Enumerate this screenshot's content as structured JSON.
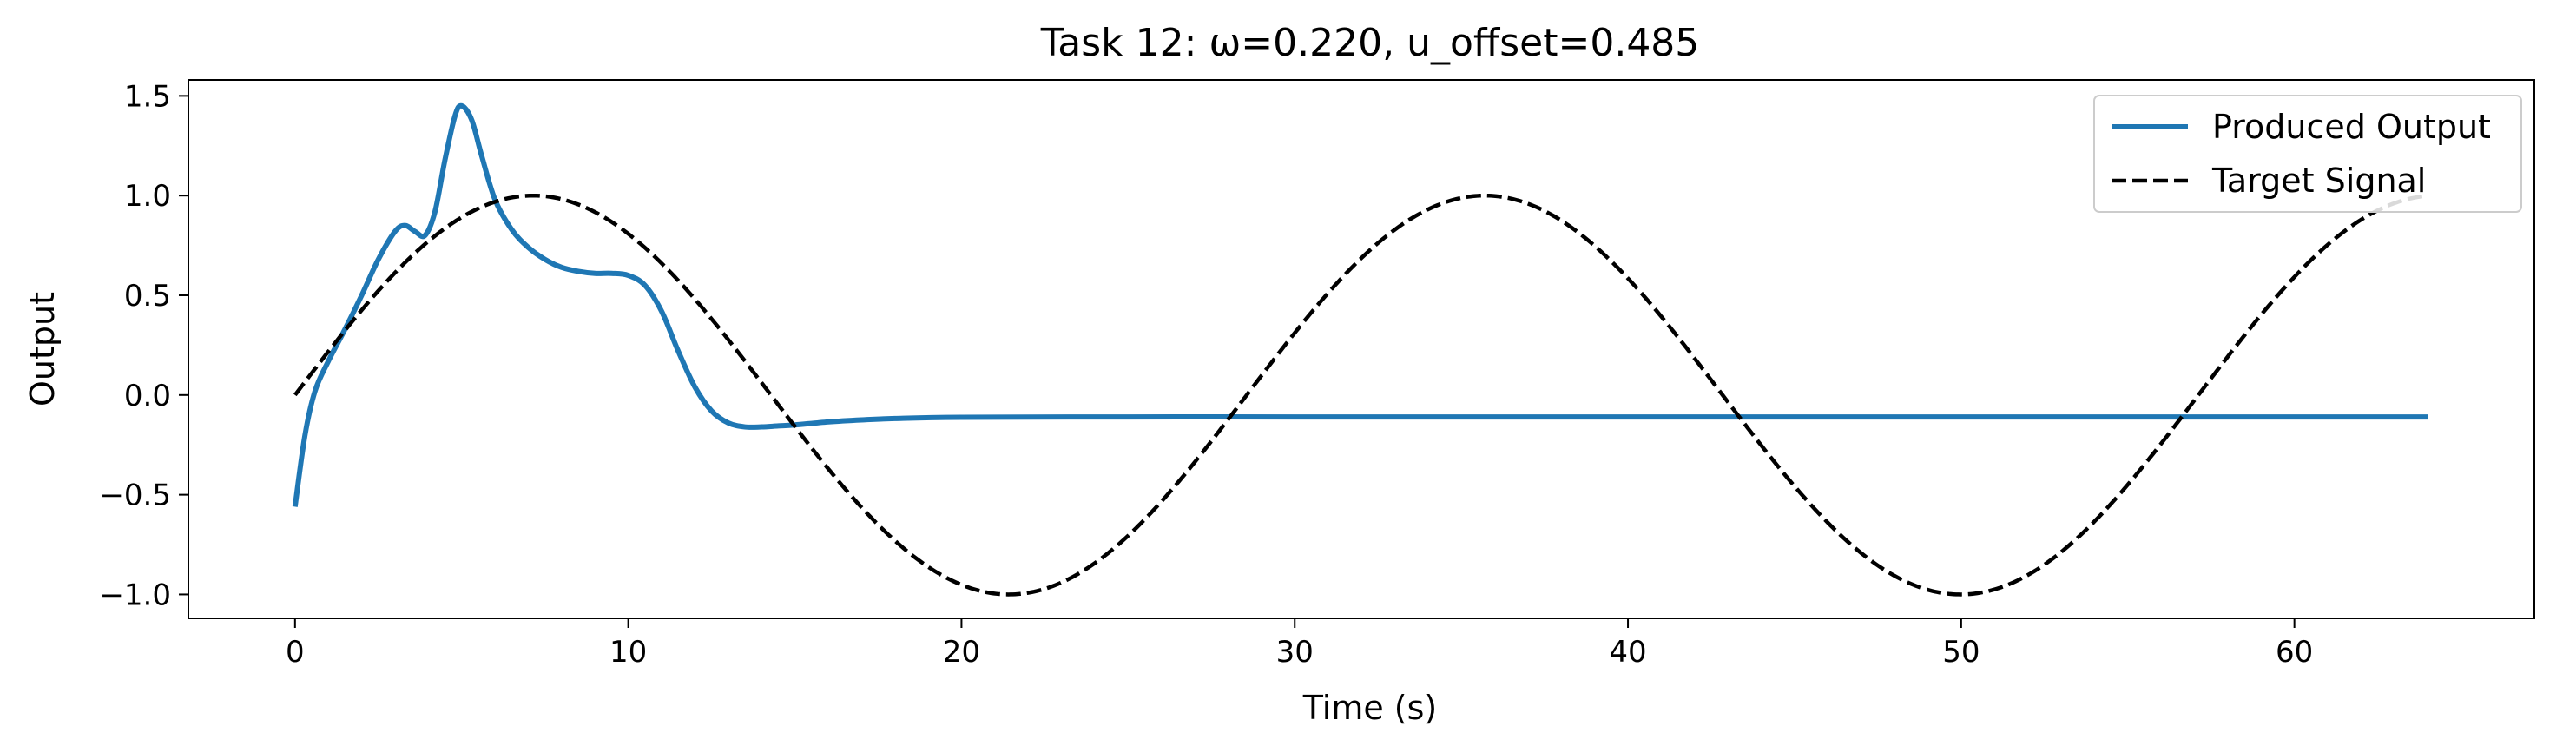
{
  "chart_data": {
    "type": "line",
    "title": "Task 12: ω=0.220, u_offset=0.485",
    "xlabel": "Time (s)",
    "ylabel": "Output",
    "xlim": [
      -3.2,
      67.2
    ],
    "ylim": [
      -1.12,
      1.58
    ],
    "xticks": [
      0,
      10,
      20,
      30,
      40,
      50,
      60
    ],
    "xtick_labels": [
      "0",
      "10",
      "20",
      "30",
      "40",
      "50",
      "60"
    ],
    "yticks": [
      -1.0,
      -0.5,
      0.0,
      0.5,
      1.0,
      1.5
    ],
    "ytick_labels": [
      "−1.0",
      "−0.5",
      "0.0",
      "0.5",
      "1.0",
      "1.5"
    ],
    "grid": false,
    "legend_position": "top-right",
    "series": [
      {
        "name": "Produced Output",
        "color": "#1f77b4",
        "style": "solid",
        "x": [
          0,
          0.3,
          0.6,
          1.0,
          1.5,
          2.0,
          2.5,
          3.0,
          3.3,
          3.6,
          3.9,
          4.2,
          4.5,
          4.8,
          5.0,
          5.3,
          5.6,
          6.0,
          6.5,
          7.0,
          7.5,
          8.0,
          8.5,
          9.0,
          9.5,
          10.0,
          10.5,
          11.0,
          11.5,
          12.0,
          12.5,
          13.0,
          13.5,
          14.0,
          14.5,
          15.0,
          16.0,
          17.0,
          18.0,
          20.0,
          25.0,
          30.0,
          40.0,
          50.0,
          60.0,
          64.0
        ],
        "y": [
          -0.56,
          -0.2,
          0.02,
          0.17,
          0.33,
          0.5,
          0.68,
          0.82,
          0.85,
          0.82,
          0.8,
          0.92,
          1.18,
          1.4,
          1.45,
          1.38,
          1.2,
          0.98,
          0.83,
          0.74,
          0.68,
          0.64,
          0.62,
          0.61,
          0.61,
          0.6,
          0.55,
          0.42,
          0.22,
          0.04,
          -0.08,
          -0.14,
          -0.16,
          -0.16,
          -0.155,
          -0.15,
          -0.135,
          -0.125,
          -0.118,
          -0.112,
          -0.11,
          -0.11,
          -0.11,
          -0.11,
          -0.11,
          -0.11
        ]
      },
      {
        "name": "Target Signal",
        "color": "#000000",
        "style": "dashed",
        "function": "sin",
        "omega": 0.22,
        "x_range": [
          0,
          64
        ]
      }
    ]
  }
}
